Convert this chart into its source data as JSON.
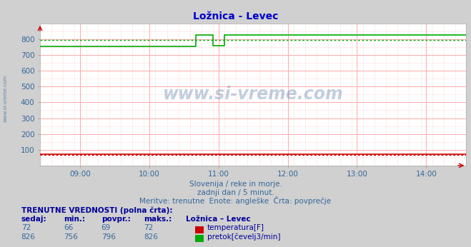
{
  "title": "Ložnica - Levec",
  "subtitle1": "Slovenija / reke in morje.",
  "subtitle2": "zadnji dan / 5 minut.",
  "subtitle3": "Meritve: trenutne  Enote: angleške  Črta: povprečje",
  "bg_color": "#d0d0d0",
  "plot_bg_color": "#ffffff",
  "grid_color_major": "#ffaaaa",
  "grid_color_minor": "#ffdddd",
  "title_color": "#0000cc",
  "subtitle_color": "#336699",
  "label_color": "#336699",
  "watermark_color": "#336699",
  "xmin": 8.42,
  "xmax": 14.58,
  "ymin": 0,
  "ymax": 900,
  "yticks": [
    100,
    200,
    300,
    400,
    500,
    600,
    700,
    800
  ],
  "xticks": [
    9,
    10,
    11,
    12,
    13,
    14
  ],
  "xtick_labels": [
    "09:00",
    "10:00",
    "11:00",
    "12:00",
    "13:00",
    "14:00"
  ],
  "temp_color": "#cc0000",
  "flow_color": "#00aa00",
  "avg_temp_color": "#cc0000",
  "avg_flow_color": "#00aa00",
  "temp_avg": 69,
  "flow_avg": 796,
  "flow_data_x": [
    8.42,
    10.67,
    10.67,
    10.75,
    10.917,
    10.917,
    11.083,
    11.083,
    11.25,
    11.25,
    14.58
  ],
  "flow_data_y": [
    756,
    756,
    826,
    826,
    826,
    760,
    760,
    826,
    826,
    826,
    826
  ],
  "temp_data_x": [
    8.42,
    14.58
  ],
  "temp_data_y": [
    72,
    72
  ],
  "table_header_color": "#000099",
  "table_value_color": "#336699",
  "legend_temp_color": "#cc0000",
  "legend_flow_color": "#00aa00",
  "table_headers": [
    "sedaj:",
    "min.:",
    "povpr.:",
    "maks.:",
    "Ložnica – Levec"
  ],
  "temp_row": [
    "72",
    "66",
    "69",
    "72",
    "temperatura[F]"
  ],
  "flow_row": [
    "826",
    "756",
    "796",
    "826",
    "pretok[čevelj3/min]"
  ],
  "footer_label": "TRENUTNE VREDNOSTI (polna črta):"
}
